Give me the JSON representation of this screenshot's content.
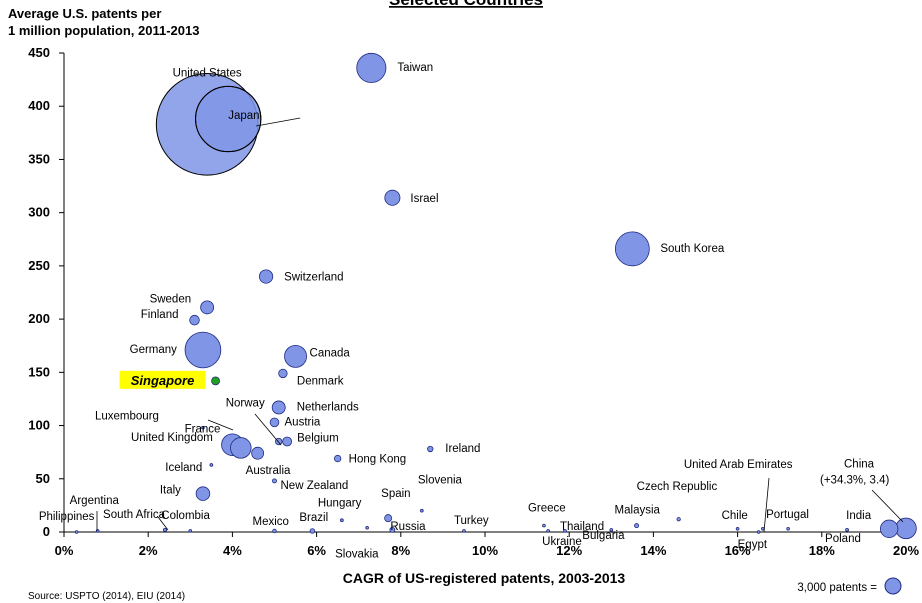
{
  "chart_data": {
    "type": "scatter",
    "title": "Selected Countries",
    "ylabel": "Average U.S. patents per\n1 million population, 2011-2013",
    "xlabel": "CAGR of US-registered patents, 2003-2013",
    "xlim": [
      0,
      20
    ],
    "ylim": [
      0,
      450
    ],
    "xticks": [
      "0%",
      "2%",
      "4%",
      "6%",
      "8%",
      "10%",
      "12%",
      "14%",
      "16%",
      "18%",
      "20%"
    ],
    "yticks": [
      "0",
      "50",
      "100",
      "150",
      "200",
      "250",
      "300",
      "350",
      "400",
      "450"
    ],
    "source": "Source: USPTO (2014), EIU (2014)",
    "size_legend": {
      "label": "3,000 patents =",
      "patents": 3000
    },
    "bubble_color": "#8095e6",
    "bubble_stroke": "#1f2a80",
    "highlight_color": "#22a022",
    "highlight_bg": "#ffff00",
    "points": [
      {
        "label": "United States",
        "x": 3.4,
        "y": 383,
        "patents": 121000,
        "hollow": true
      },
      {
        "label": "Japan",
        "x": 3.9,
        "y": 388,
        "patents": 50000,
        "hollow": true
      },
      {
        "label": "Taiwan",
        "x": 7.3,
        "y": 436,
        "patents": 10000
      },
      {
        "label": "Israel",
        "x": 7.8,
        "y": 314,
        "patents": 2700
      },
      {
        "label": "South Korea",
        "x": 13.5,
        "y": 266,
        "patents": 13500
      },
      {
        "label": "Switzerland",
        "x": 4.8,
        "y": 240,
        "patents": 2100
      },
      {
        "label": "Sweden",
        "x": 3.4,
        "y": 211,
        "patents": 2000
      },
      {
        "label": "Finland",
        "x": 3.1,
        "y": 199,
        "patents": 1100
      },
      {
        "label": "Germany",
        "x": 3.3,
        "y": 171,
        "patents": 15000
      },
      {
        "label": "Canada",
        "x": 5.5,
        "y": 165,
        "patents": 5700
      },
      {
        "label": "Denmark",
        "x": 5.2,
        "y": 149,
        "patents": 850
      },
      {
        "label": "Singapore",
        "x": 3.6,
        "y": 142,
        "patents": 750,
        "highlight": true
      },
      {
        "label": "Netherlands",
        "x": 5.1,
        "y": 117,
        "patents": 2000
      },
      {
        "label": "Austria",
        "x": 5.0,
        "y": 103,
        "patents": 900
      },
      {
        "label": "Norway",
        "x": 5.1,
        "y": 85,
        "patents": 500
      },
      {
        "label": "Belgium",
        "x": 5.3,
        "y": 85,
        "patents": 950
      },
      {
        "label": "Luxembourg",
        "x": 3.3,
        "y": 98,
        "patents": 50
      },
      {
        "label": "France",
        "x": 4.0,
        "y": 82,
        "patents": 5500
      },
      {
        "label": "United Kingdom",
        "x": 4.2,
        "y": 79,
        "patents": 5000
      },
      {
        "label": "Australia",
        "x": 4.6,
        "y": 74,
        "patents": 1700
      },
      {
        "label": "Iceland",
        "x": 3.5,
        "y": 63,
        "patents": 25
      },
      {
        "label": "Hong Kong",
        "x": 6.5,
        "y": 69,
        "patents": 500
      },
      {
        "label": "Ireland",
        "x": 8.7,
        "y": 78,
        "patents": 350
      },
      {
        "label": "New Zealand",
        "x": 5.0,
        "y": 48,
        "patents": 200
      },
      {
        "label": "Italy",
        "x": 3.3,
        "y": 36,
        "patents": 2200
      },
      {
        "label": "Argentina",
        "x": 0.8,
        "y": 1,
        "patents": 40
      },
      {
        "label": "Philippines",
        "x": 0.3,
        "y": 0,
        "patents": 30
      },
      {
        "label": "South Africa",
        "x": 2.4,
        "y": 2,
        "patents": 120
      },
      {
        "label": "Colombia",
        "x": 3.0,
        "y": 1,
        "patents": 20
      },
      {
        "label": "Mexico",
        "x": 5.0,
        "y": 1,
        "patents": 150
      },
      {
        "label": "Brazil",
        "x": 5.9,
        "y": 1,
        "patents": 250
      },
      {
        "label": "Hungary",
        "x": 6.6,
        "y": 11,
        "patents": 100
      },
      {
        "label": "Spain",
        "x": 7.7,
        "y": 13,
        "patents": 600
      },
      {
        "label": "Slovakia",
        "x": 7.2,
        "y": 4,
        "patents": 20
      },
      {
        "label": "Russia",
        "x": 7.8,
        "y": 2,
        "patents": 300
      },
      {
        "label": "Slovenia",
        "x": 8.5,
        "y": 20,
        "patents": 30
      },
      {
        "label": "Turkey",
        "x": 9.5,
        "y": 1,
        "patents": 80
      },
      {
        "label": "Ukraine",
        "x": 11.5,
        "y": 1,
        "patents": 40
      },
      {
        "label": "Greece",
        "x": 11.4,
        "y": 6,
        "patents": 60
      },
      {
        "label": "Thailand",
        "x": 11.9,
        "y": 1,
        "patents": 90
      },
      {
        "label": "Bulgaria",
        "x": 13.0,
        "y": 2,
        "patents": 15
      },
      {
        "label": "Malaysia",
        "x": 13.6,
        "y": 6,
        "patents": 200
      },
      {
        "label": "Czech Republic",
        "x": 14.6,
        "y": 12,
        "patents": 140
      },
      {
        "label": "Chile",
        "x": 16.0,
        "y": 3,
        "patents": 60
      },
      {
        "label": "United Arab Emirates",
        "x": 16.6,
        "y": 3,
        "patents": 30
      },
      {
        "label": "Portugal",
        "x": 17.2,
        "y": 3,
        "patents": 40
      },
      {
        "label": "Egypt",
        "x": 16.5,
        "y": 0,
        "patents": 20
      },
      {
        "label": "Poland",
        "x": 18.6,
        "y": 2,
        "patents": 100
      },
      {
        "label": "India",
        "x": 19.6,
        "y": 3,
        "patents": 3600
      },
      {
        "label": "China",
        "x": 20.0,
        "y": 3.4,
        "patents": 5000
      },
      {
        "label": "(+34.3%, 3.4)",
        "x": 20.0,
        "y": 3.4,
        "note_for": "China"
      }
    ]
  }
}
